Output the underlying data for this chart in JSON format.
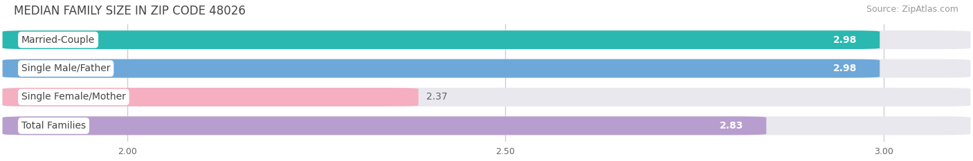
{
  "title": "MEDIAN FAMILY SIZE IN ZIP CODE 48026",
  "source": "Source: ZipAtlas.com",
  "categories": [
    "Married-Couple",
    "Single Male/Father",
    "Single Female/Mother",
    "Total Families"
  ],
  "values": [
    2.98,
    2.98,
    2.37,
    2.83
  ],
  "bar_colors": [
    "#2ab8b0",
    "#6ea8d8",
    "#f5afc0",
    "#b89ece"
  ],
  "xlim_left": 1.85,
  "xlim_right": 3.1,
  "xticks": [
    2.0,
    2.5,
    3.0
  ],
  "xtick_labels": [
    "2.00",
    "2.50",
    "3.00"
  ],
  "bar_height": 0.62,
  "bar_spacing": 1.0,
  "title_fontsize": 12,
  "source_fontsize": 9,
  "label_fontsize": 10,
  "value_fontsize": 10,
  "tick_fontsize": 9,
  "background_color": "#ffffff",
  "bar_bg_color": "#e8e8ee",
  "value_label_color": "#ffffff",
  "category_label_color": "#444444",
  "grid_color": "#ccccdd"
}
